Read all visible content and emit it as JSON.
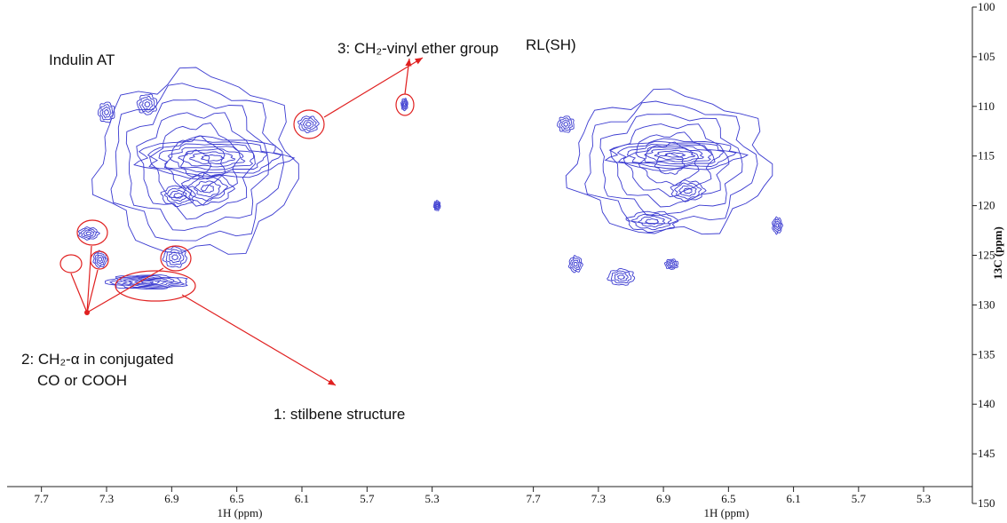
{
  "chart_data": [
    {
      "type": "contour",
      "title": "Indulin AT",
      "xlabel": "1H (ppm)",
      "color": "#3a3ad0",
      "xlim": [
        7.9,
        4.9
      ],
      "xticks": [
        7.7,
        7.3,
        6.9,
        6.5,
        6.1,
        5.7,
        5.3
      ],
      "ylim": [
        100,
        150
      ],
      "annotations": [
        "3: CH₂-vinyl ether group",
        "2: CH₂-α in conjugated",
        "CO or COOH",
        "1: stilbene structure"
      ],
      "peaks": [
        {
          "x": 6.75,
          "y": 115.8,
          "dx": 0.6,
          "dy": 9
        },
        {
          "x": 6.65,
          "y": 115.2,
          "dx": 0.45,
          "dy": 2
        },
        {
          "x": 6.68,
          "y": 118.3,
          "dx": 0.15,
          "dy": 1.5
        },
        {
          "x": 6.86,
          "y": 119,
          "dx": 0.1,
          "dy": 1
        },
        {
          "x": 7.05,
          "y": 109.8,
          "dx": 0.06,
          "dy": 1
        },
        {
          "x": 7.3,
          "y": 110.6,
          "dx": 0.05,
          "dy": 1
        },
        {
          "x": 6.88,
          "y": 125.2,
          "dx": 0.07,
          "dy": 1
        },
        {
          "x": 7.34,
          "y": 125.4,
          "dx": 0.04,
          "dy": 0.8
        },
        {
          "x": 7.41,
          "y": 122.8,
          "dx": 0.06,
          "dy": 0.6
        },
        {
          "x": 6.06,
          "y": 111.8,
          "dx": 0.06,
          "dy": 0.8
        },
        {
          "x": 5.47,
          "y": 109.8,
          "dx": 0.02,
          "dy": 0.6
        },
        {
          "x": 7.05,
          "y": 127.7,
          "dx": 0.25,
          "dy": 0.7
        },
        {
          "x": 5.27,
          "y": 120,
          "dx": 0.02,
          "dy": 0.5
        }
      ]
    },
    {
      "type": "contour",
      "title": "RL(SH)",
      "xlabel": "1H (ppm)",
      "ylabel": "13C (ppm)",
      "color": "#3a3ad0",
      "xlim": [
        7.9,
        5.0
      ],
      "xticks": [
        7.7,
        7.3,
        6.9,
        6.5,
        6.1,
        5.7,
        5.3
      ],
      "ylim": [
        100,
        150
      ],
      "yticks": [
        100,
        105,
        110,
        115,
        120,
        125,
        130,
        135,
        140,
        145,
        150
      ],
      "peaks": [
        {
          "x": 6.86,
          "y": 115.8,
          "dx": 0.6,
          "dy": 7
        },
        {
          "x": 6.83,
          "y": 114.9,
          "dx": 0.4,
          "dy": 1.5
        },
        {
          "x": 6.75,
          "y": 118.5,
          "dx": 0.1,
          "dy": 1
        },
        {
          "x": 6.97,
          "y": 121.6,
          "dx": 0.15,
          "dy": 1
        },
        {
          "x": 6.85,
          "y": 125.9,
          "dx": 0.04,
          "dy": 0.5
        },
        {
          "x": 7.5,
          "y": 111.8,
          "dx": 0.05,
          "dy": 0.8
        },
        {
          "x": 7.16,
          "y": 127.2,
          "dx": 0.08,
          "dy": 0.8
        },
        {
          "x": 7.44,
          "y": 125.9,
          "dx": 0.04,
          "dy": 0.8
        },
        {
          "x": 6.2,
          "y": 122,
          "dx": 0.03,
          "dy": 0.8
        }
      ]
    }
  ]
}
